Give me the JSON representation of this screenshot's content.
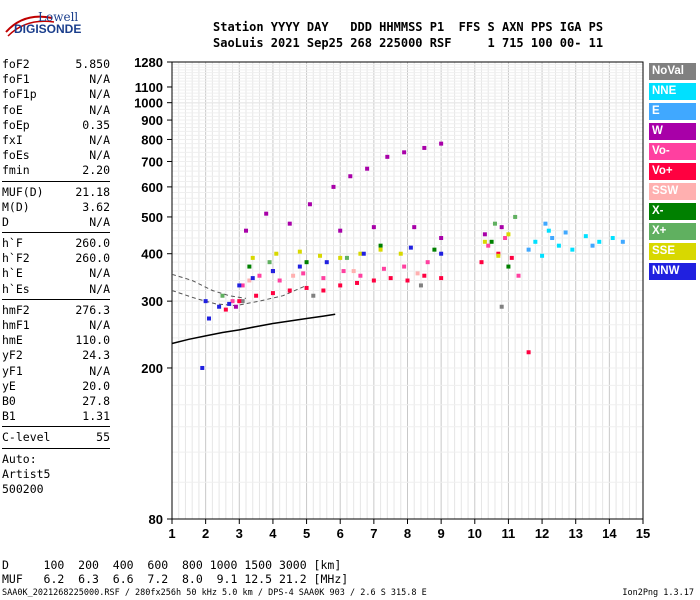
{
  "logo": {
    "line1": "Lowell",
    "line2": "DIGISONDE"
  },
  "header": {
    "line1": "Station YYYY DAY   DDD HHMMSS P1  FFS S AXN PPS IGA PS",
    "line2": "SaoLuis 2021 Sep25 268 225000 RSF     1 715 100 00- 11"
  },
  "params_group1": [
    {
      "name": "foF2",
      "value": "5.850"
    },
    {
      "name": "foF1",
      "value": "N/A"
    },
    {
      "name": "foF1p",
      "value": "N/A"
    },
    {
      "name": "foE",
      "value": "N/A"
    },
    {
      "name": "foEp",
      "value": "0.35"
    },
    {
      "name": "fxI",
      "value": "N/A"
    },
    {
      "name": "foEs",
      "value": "N/A"
    },
    {
      "name": "fmin",
      "value": "2.20"
    }
  ],
  "params_group2": [
    {
      "name": "MUF(D)",
      "value": "21.18"
    },
    {
      "name": "M(D)",
      "value": "3.62"
    },
    {
      "name": "D",
      "value": "N/A"
    }
  ],
  "params_group3": [
    {
      "name": "h`F",
      "value": "260.0"
    },
    {
      "name": "h`F2",
      "value": "260.0"
    },
    {
      "name": "h`E",
      "value": "N/A"
    },
    {
      "name": "h`Es",
      "value": "N/A"
    }
  ],
  "params_group4": [
    {
      "name": "hmF2",
      "value": "276.3"
    },
    {
      "name": "hmF1",
      "value": "N/A"
    },
    {
      "name": "hmE",
      "value": "110.0"
    },
    {
      "name": "yF2",
      "value": "24.3"
    },
    {
      "name": "yF1",
      "value": "N/A"
    },
    {
      "name": "yE",
      "value": "20.0"
    },
    {
      "name": "B0",
      "value": "27.8"
    },
    {
      "name": "B1",
      "value": "1.31"
    }
  ],
  "params_group5": [
    {
      "name": "C-level",
      "value": "55"
    }
  ],
  "auto_lines": [
    "Auto:",
    "Artist5",
    "500200"
  ],
  "legend": [
    {
      "label": "NoVal",
      "color": "#808080"
    },
    {
      "label": "NNE",
      "color": "#00e0ff"
    },
    {
      "label": "E",
      "color": "#40a8ff"
    },
    {
      "label": "W",
      "color": "#a800a8"
    },
    {
      "label": "Vo-",
      "color": "#ff40a0"
    },
    {
      "label": "Vo+",
      "color": "#ff0040"
    },
    {
      "label": "SSW",
      "color": "#ffb0b0"
    },
    {
      "label": "X-",
      "color": "#008000"
    },
    {
      "label": "X+",
      "color": "#60b060"
    },
    {
      "label": "SSE",
      "color": "#d8d800"
    },
    {
      "label": "NNW",
      "color": "#2020e0"
    }
  ],
  "bottom": {
    "d_line": "D     100  200  400  600  800 1000 1500 3000 [km]",
    "muf_line": "MUF   6.2  6.3  6.6  7.2  8.0  9.1 12.5 21.2 [MHz]"
  },
  "footer": {
    "left": "SAA0K_2021268225000.RSF / 280fx256h 50 kHz 5.0 km / DPS-4 SAA0K 903 / 2.6 S 315.8 E",
    "right": "Ion2Png 1.3.17"
  },
  "chart_data": {
    "type": "scatter",
    "title": "",
    "xlabel": "",
    "ylabel": "",
    "x_ticks": [
      1,
      2,
      3,
      4,
      5,
      6,
      7,
      8,
      9,
      10,
      11,
      12,
      13,
      14,
      15
    ],
    "y_ticks": [
      80,
      200,
      300,
      400,
      500,
      600,
      700,
      800,
      900,
      1000,
      1100,
      1280
    ],
    "xlim": [
      1,
      15
    ],
    "ylim": [
      80,
      1280
    ],
    "y_scale": "log",
    "grid": true,
    "series": [
      {
        "name": "NoVal",
        "color": "#808080",
        "points": [
          [
            3.1,
            300
          ],
          [
            5.2,
            310
          ],
          [
            8.4,
            330
          ],
          [
            10.8,
            290
          ]
        ]
      },
      {
        "name": "NNE",
        "color": "#00e0ff",
        "points": [
          [
            11.8,
            430
          ],
          [
            12.2,
            460
          ],
          [
            12.5,
            420
          ],
          [
            12.9,
            410
          ],
          [
            13.3,
            445
          ],
          [
            14.1,
            440
          ],
          [
            12.0,
            395
          ],
          [
            13.7,
            430
          ]
        ]
      },
      {
        "name": "E",
        "color": "#40a8ff",
        "points": [
          [
            12.3,
            440
          ],
          [
            12.7,
            455
          ],
          [
            13.5,
            420
          ],
          [
            11.6,
            410
          ],
          [
            14.4,
            430
          ],
          [
            12.1,
            480
          ]
        ]
      },
      {
        "name": "W",
        "color": "#a800a8",
        "points": [
          [
            3.2,
            460
          ],
          [
            3.8,
            510
          ],
          [
            4.5,
            480
          ],
          [
            5.1,
            540
          ],
          [
            5.8,
            600
          ],
          [
            6.3,
            640
          ],
          [
            6.8,
            670
          ],
          [
            7.4,
            720
          ],
          [
            7.9,
            740
          ],
          [
            8.5,
            760
          ],
          [
            9.0,
            780
          ],
          [
            6.0,
            460
          ],
          [
            7.0,
            470
          ],
          [
            8.2,
            470
          ],
          [
            9.0,
            440
          ],
          [
            10.3,
            450
          ],
          [
            10.8,
            470
          ],
          [
            2.9,
            290
          ],
          [
            4.0,
            360
          ]
        ]
      },
      {
        "name": "Vo-",
        "color": "#ff40a0",
        "points": [
          [
            3.1,
            330
          ],
          [
            3.6,
            350
          ],
          [
            4.2,
            340
          ],
          [
            4.9,
            355
          ],
          [
            5.5,
            345
          ],
          [
            6.1,
            360
          ],
          [
            6.6,
            350
          ],
          [
            7.3,
            365
          ],
          [
            7.9,
            370
          ],
          [
            8.6,
            380
          ],
          [
            10.4,
            420
          ],
          [
            10.9,
            440
          ],
          [
            11.3,
            350
          ],
          [
            2.8,
            300
          ]
        ]
      },
      {
        "name": "Vo+",
        "color": "#ff0040",
        "points": [
          [
            2.6,
            285
          ],
          [
            3.0,
            300
          ],
          [
            3.5,
            310
          ],
          [
            4.0,
            315
          ],
          [
            4.5,
            320
          ],
          [
            5.0,
            325
          ],
          [
            5.5,
            320
          ],
          [
            6.0,
            330
          ],
          [
            6.5,
            335
          ],
          [
            7.0,
            340
          ],
          [
            7.5,
            345
          ],
          [
            8.0,
            340
          ],
          [
            8.5,
            350
          ],
          [
            9.0,
            345
          ],
          [
            10.2,
            380
          ],
          [
            10.7,
            400
          ],
          [
            11.1,
            390
          ],
          [
            11.6,
            220
          ]
        ]
      },
      {
        "name": "SSW",
        "color": "#ffb0b0",
        "points": [
          [
            3.3,
            340
          ],
          [
            4.6,
            350
          ],
          [
            6.4,
            360
          ],
          [
            8.3,
            355
          ]
        ]
      },
      {
        "name": "X-",
        "color": "#008000",
        "points": [
          [
            3.3,
            370
          ],
          [
            5.0,
            380
          ],
          [
            7.2,
            420
          ],
          [
            8.8,
            410
          ],
          [
            10.5,
            430
          ],
          [
            11.0,
            370
          ]
        ]
      },
      {
        "name": "X+",
        "color": "#60b060",
        "points": [
          [
            2.5,
            310
          ],
          [
            3.9,
            380
          ],
          [
            6.2,
            390
          ],
          [
            10.6,
            480
          ],
          [
            11.2,
            500
          ]
        ]
      },
      {
        "name": "SSE",
        "color": "#d8d800",
        "points": [
          [
            3.4,
            390
          ],
          [
            4.1,
            400
          ],
          [
            4.8,
            405
          ],
          [
            5.4,
            395
          ],
          [
            6.0,
            390
          ],
          [
            6.6,
            400
          ],
          [
            7.2,
            410
          ],
          [
            7.8,
            400
          ],
          [
            10.3,
            430
          ],
          [
            11.0,
            450
          ],
          [
            10.7,
            395
          ]
        ]
      },
      {
        "name": "NNW",
        "color": "#2020e0",
        "points": [
          [
            2.1,
            270
          ],
          [
            2.4,
            290
          ],
          [
            2.7,
            295
          ],
          [
            3.0,
            330
          ],
          [
            3.4,
            345
          ],
          [
            4.0,
            360
          ],
          [
            4.8,
            370
          ],
          [
            5.6,
            380
          ],
          [
            6.7,
            400
          ],
          [
            8.1,
            415
          ],
          [
            9.0,
            400
          ],
          [
            2.0,
            300
          ],
          [
            1.9,
            200
          ]
        ]
      }
    ],
    "profile_curve": [
      [
        1.0,
        232
      ],
      [
        1.5,
        238
      ],
      [
        2.0,
        243
      ],
      [
        2.5,
        248
      ],
      [
        3.0,
        252
      ],
      [
        3.5,
        257
      ],
      [
        4.0,
        262
      ],
      [
        4.5,
        266
      ],
      [
        5.0,
        270
      ],
      [
        5.5,
        274
      ],
      [
        5.85,
        277
      ]
    ],
    "dashed_traces": [
      [
        [
          1.0,
          353
        ],
        [
          1.6,
          340
        ],
        [
          2.2,
          320
        ],
        [
          2.7,
          310
        ],
        [
          3.2,
          305
        ]
      ],
      [
        [
          1.0,
          320
        ],
        [
          1.7,
          305
        ],
        [
          2.3,
          295
        ],
        [
          2.9,
          292
        ],
        [
          3.6,
          300
        ],
        [
          4.3,
          310
        ],
        [
          5.0,
          330
        ]
      ]
    ]
  }
}
